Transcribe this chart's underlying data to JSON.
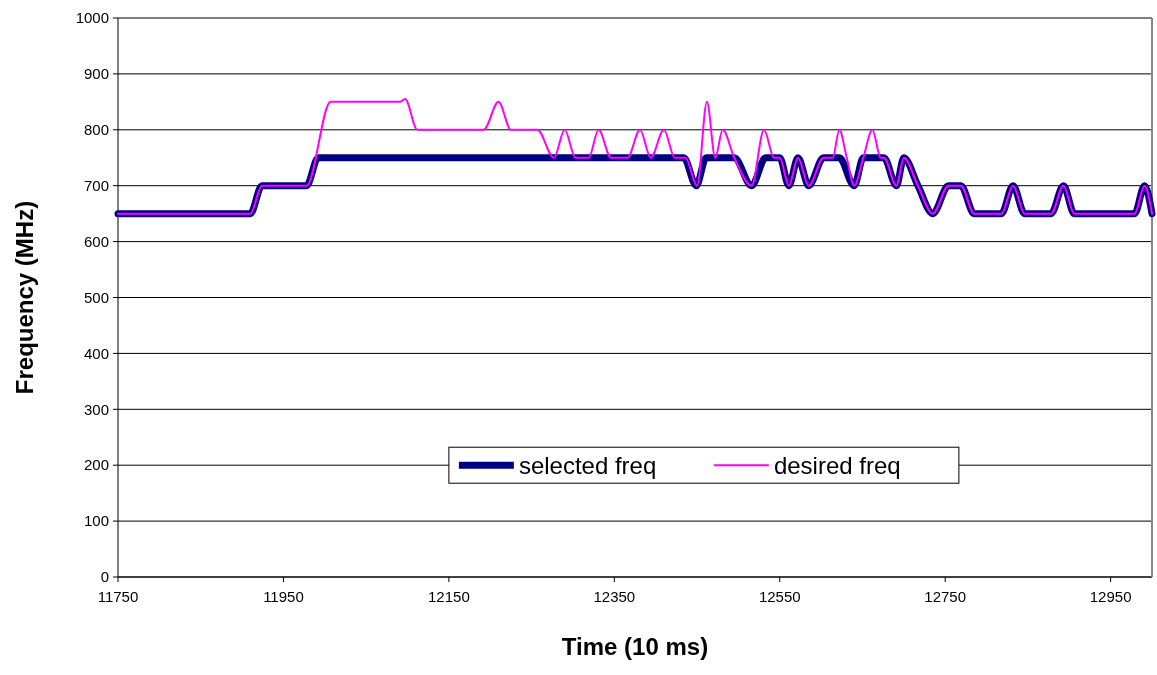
{
  "chart_data": {
    "type": "line",
    "xlabel": "Time (10 ms)",
    "ylabel": "Frequency (MHz)",
    "xlim": [
      11750,
      13000
    ],
    "xticks": [
      11750,
      11950,
      12150,
      12350,
      12550,
      12750,
      12950
    ],
    "ylim": [
      0,
      1000
    ],
    "yticks": [
      0,
      100,
      200,
      300,
      400,
      500,
      600,
      700,
      800,
      900,
      1000
    ],
    "grid": "y",
    "legend": "bottom",
    "marker": "none",
    "line_style": "solid",
    "series": [
      {
        "name": "selected freq",
        "color": "#000080",
        "x": [
          11750,
          11910,
          11924,
          11978,
          11992,
          12434,
          12449,
          12461,
          12495,
          12516,
          12533,
          12550,
          12561,
          12572,
          12585,
          12603,
          12622,
          12640,
          12651,
          12676,
          12691,
          12700,
          12717,
          12735,
          12754,
          12769,
          12785,
          12818,
          12832,
          12846,
          12878,
          12893,
          12906,
          12979,
          12991,
          13000
        ],
        "values": [
          650,
          650,
          700,
          700,
          750,
          750,
          700,
          750,
          750,
          700,
          750,
          750,
          700,
          750,
          700,
          750,
          750,
          700,
          750,
          750,
          700,
          750,
          700,
          650,
          700,
          700,
          650,
          650,
          700,
          650,
          650,
          700,
          650,
          650,
          700,
          650
        ]
      },
      {
        "name": "desired freq",
        "color": "#ff00ff",
        "x": [
          11750,
          11910,
          11924,
          11978,
          12007,
          12091,
          12097,
          12112,
          12192,
          12210,
          12225,
          12257,
          12277,
          12290,
          12303,
          12319,
          12331,
          12346,
          12366,
          12381,
          12394,
          12410,
          12423,
          12436,
          12450,
          12462,
          12472,
          12481,
          12495,
          12516,
          12531,
          12543,
          12550,
          12561,
          12572,
          12585,
          12603,
          12614,
          12622,
          12631,
          12640,
          12651,
          12662,
          12672,
          12676,
          12691,
          12700,
          12717,
          12735,
          12754,
          12769,
          12785,
          12818,
          12832,
          12846,
          12878,
          12893,
          12906,
          12979,
          12991,
          13000
        ],
        "values": [
          650,
          650,
          700,
          700,
          850,
          850,
          855,
          800,
          800,
          850,
          800,
          800,
          750,
          800,
          750,
          750,
          800,
          750,
          750,
          800,
          750,
          800,
          750,
          750,
          700,
          850,
          750,
          800,
          750,
          700,
          800,
          750,
          750,
          700,
          750,
          700,
          750,
          750,
          800,
          750,
          700,
          750,
          800,
          750,
          750,
          700,
          750,
          700,
          650,
          700,
          700,
          650,
          650,
          700,
          650,
          650,
          700,
          650,
          650,
          700,
          650
        ]
      }
    ]
  }
}
